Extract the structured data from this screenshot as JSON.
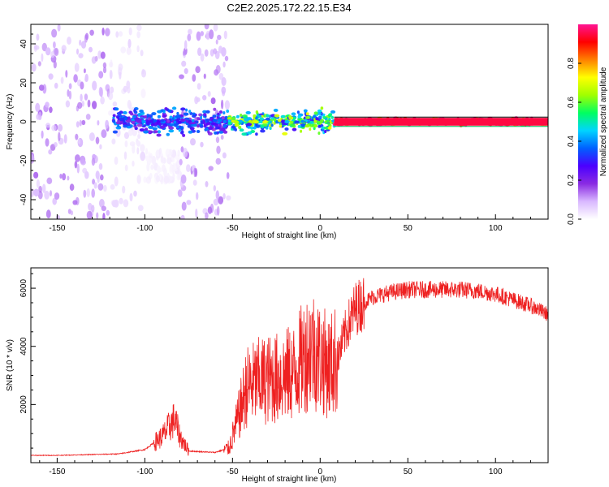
{
  "figure_title": "C2E2.2025.172.22.15.E34",
  "chart_data": [
    {
      "type": "heatmap",
      "xlabel": "Height of straight line (km)",
      "ylabel": "Frequency (Hz)",
      "xlim": [
        -165,
        130
      ],
      "ylim": [
        -50,
        50
      ],
      "x_ticks": [
        -150,
        -100,
        -50,
        0,
        50,
        100
      ],
      "y_ticks": [
        -40,
        -20,
        0,
        20,
        40
      ],
      "colorbar": {
        "label": "Normalized spectral amplitude",
        "range": [
          0,
          1
        ],
        "ticks": [
          0.0,
          0.2,
          0.4,
          0.6,
          0.8
        ],
        "colormap": [
          "#ffffff",
          "#d9b8ff",
          "#8a2be2",
          "#4b00ff",
          "#0060ff",
          "#00d4ff",
          "#00ff60",
          "#a0ff00",
          "#ffff00",
          "#ff8000",
          "#ff0000",
          "#ff1493"
        ]
      },
      "regions": [
        {
          "x": [
            -165,
            -120
          ],
          "freq_spread": [
            -50,
            50
          ],
          "amplitude": 0.1
        },
        {
          "x": [
            -120,
            -100
          ],
          "freq_spread": [
            -45,
            50
          ],
          "amplitude": 0.04
        },
        {
          "x": [
            -100,
            -80
          ],
          "freq_spread": [
            -30,
            -15
          ],
          "amplitude": 0.02
        },
        {
          "x": [
            -80,
            -52
          ],
          "freq_spread": [
            -50,
            50
          ],
          "amplitude": 0.1
        },
        {
          "x": [
            -118,
            -52
          ],
          "freq_center": 0,
          "freq_spread": [
            -8,
            8
          ],
          "amplitude": 0.3
        },
        {
          "x": [
            -52,
            8
          ],
          "freq_center": 0,
          "freq_spread": [
            -10,
            5
          ],
          "amplitude": 0.5
        },
        {
          "x": [
            8,
            130
          ],
          "freq_center": 0,
          "freq_spread": [
            -2,
            2
          ],
          "amplitude": 0.95
        }
      ]
    },
    {
      "type": "line",
      "xlabel": "Height of straight line (km)",
      "ylabel": "SNR (10 * v/v)",
      "xlim": [
        -165,
        130
      ],
      "ylim": [
        0,
        6700
      ],
      "x_ticks": [
        -150,
        -100,
        -50,
        0,
        50,
        100
      ],
      "y_ticks": [
        2000,
        4000,
        6000
      ],
      "color": "#ee2020",
      "series": [
        {
          "x": [
            -165,
            -150,
            -130,
            -115,
            -100,
            -90,
            -83,
            -80,
            -75,
            -60,
            -52,
            -47,
            -42,
            -35,
            -25,
            -15,
            -10,
            -5,
            0,
            5,
            10,
            15,
            20,
            30,
            40,
            50,
            60,
            70,
            80,
            90,
            100,
            110,
            120,
            130
          ],
          "values": [
            250,
            250,
            280,
            300,
            450,
            900,
            1500,
            900,
            400,
            350,
            500,
            1500,
            2600,
            2800,
            2900,
            3100,
            3600,
            4000,
            3600,
            3300,
            3600,
            4600,
            5300,
            5700,
            5850,
            5950,
            5950,
            5950,
            5950,
            5900,
            5800,
            5600,
            5400,
            5100
          ]
        }
      ]
    }
  ]
}
